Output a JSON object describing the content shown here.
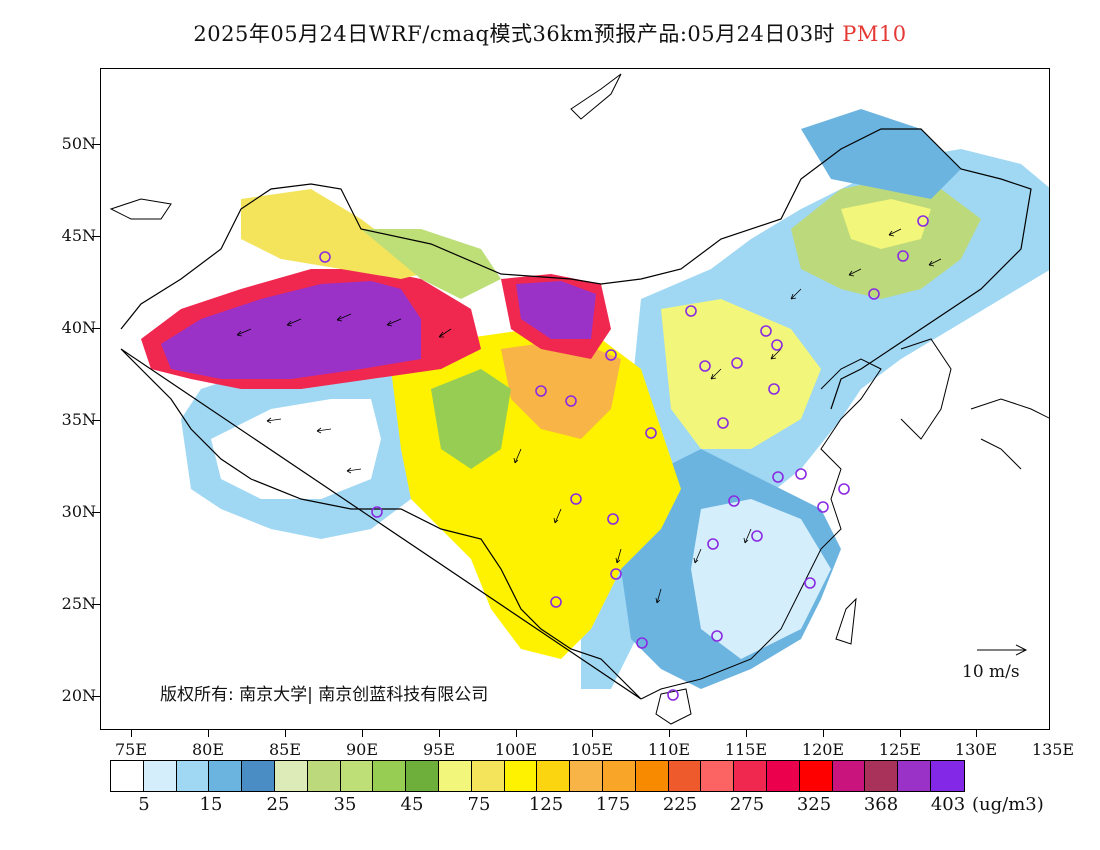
{
  "title": {
    "main": "2025年05月24日WRF/cmaq模式36km预报产品:05月24日03时",
    "pollutant": "PM10"
  },
  "axes": {
    "lat_labels": [
      "50N",
      "45N",
      "40N",
      "35N",
      "30N",
      "25N",
      "20N"
    ],
    "lon_labels": [
      "75E",
      "80E",
      "85E",
      "90E",
      "95E",
      "100E",
      "105E",
      "110E",
      "115E",
      "120E",
      "125E",
      "130E",
      "135E"
    ]
  },
  "legend": {
    "colors": [
      "#ffffff",
      "#d4eefc",
      "#a0d8f4",
      "#6cb4e0",
      "#4a8cc4",
      "#dcebb8",
      "#bcd97c",
      "#bede78",
      "#96cd52",
      "#6eae3a",
      "#f2f67a",
      "#f4e45c",
      "#fef200",
      "#fbd510",
      "#f8b446",
      "#f8a528",
      "#f88a00",
      "#ee5a2c",
      "#fc6464",
      "#f02850",
      "#ea004c",
      "#ff0000",
      "#c8147c",
      "#a8325a",
      "#9a32c8",
      "#8228e6"
    ],
    "tick_labels": [
      "5",
      "15",
      "25",
      "35",
      "45",
      "75",
      "125",
      "175",
      "225",
      "275",
      "325",
      "368",
      "403"
    ],
    "unit": "(ug/m3)"
  },
  "map": {
    "copyright": "版权所有: 南京大学| 南京创蓝科技有限公司",
    "wind_scale_label": "10 m/s",
    "site_marker_color": "#8a2be2"
  }
}
